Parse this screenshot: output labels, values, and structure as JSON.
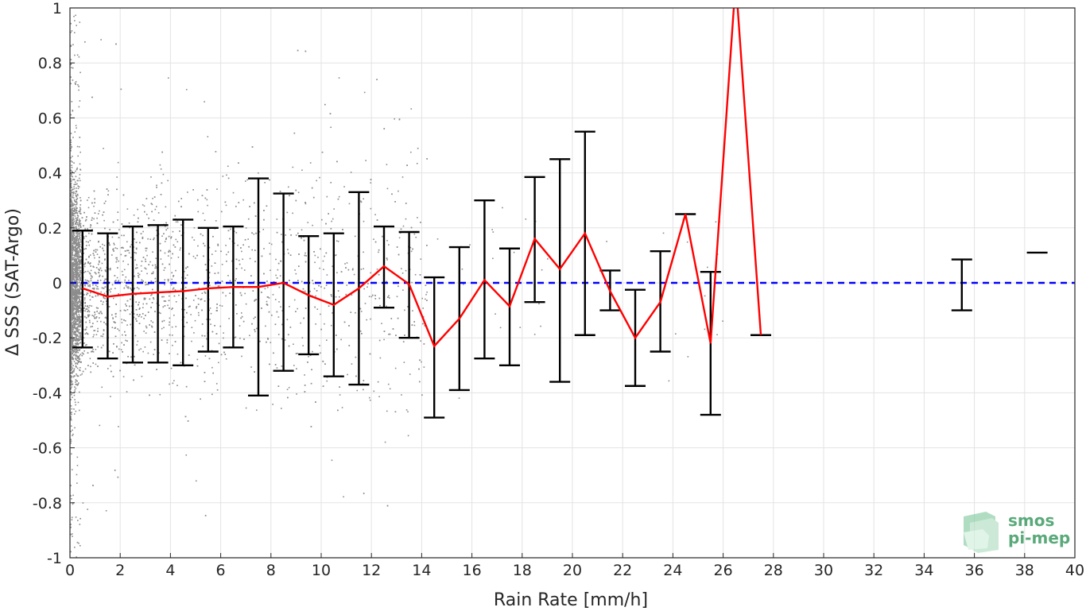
{
  "chart_data": {
    "type": "scatter",
    "xlabel": "Rain Rate [mm/h]",
    "ylabel": "Δ SSS (SAT-Argo)",
    "xlim": [
      0,
      40
    ],
    "ylim": [
      -1,
      1
    ],
    "xticks": [
      0,
      2,
      4,
      6,
      8,
      10,
      12,
      14,
      16,
      18,
      20,
      22,
      24,
      26,
      28,
      30,
      32,
      34,
      36,
      38,
      40
    ],
    "yticks": [
      -1,
      -0.8,
      -0.6,
      -0.4,
      -0.2,
      0,
      0.2,
      0.4,
      0.6,
      0.8,
      1
    ],
    "grid": true,
    "reference_line": {
      "y": 0,
      "color": "#0000ff",
      "style": "dashed"
    },
    "scatter_color": "#8c8c8c",
    "mean_line_color": "#ff0000",
    "errorbar_color": "#000000",
    "mean_line": {
      "x": [
        0.5,
        1.5,
        2.5,
        3.5,
        4.5,
        5.5,
        6.5,
        7.5,
        8.5,
        9.5,
        10.5,
        11.5,
        12.5,
        13.5,
        14.5,
        15.5,
        16.5,
        17.5,
        18.5,
        19.5,
        20.5,
        21.5,
        22.5,
        23.5,
        24.5,
        25.5,
        26.5,
        27.5
      ],
      "y": [
        -0.02,
        -0.05,
        -0.04,
        -0.035,
        -0.03,
        -0.02,
        -0.015,
        -0.015,
        0.0,
        -0.045,
        -0.08,
        -0.02,
        0.06,
        -0.005,
        -0.23,
        -0.13,
        0.01,
        -0.085,
        0.16,
        0.05,
        0.18,
        -0.03,
        -0.2,
        -0.07,
        0.25,
        -0.22,
        1.1,
        -0.19
      ]
    },
    "error_bars": [
      {
        "x": 0.5,
        "low": -0.235,
        "high": 0.19
      },
      {
        "x": 1.5,
        "low": -0.275,
        "high": 0.18
      },
      {
        "x": 2.5,
        "low": -0.29,
        "high": 0.205
      },
      {
        "x": 3.5,
        "low": -0.29,
        "high": 0.21
      },
      {
        "x": 4.5,
        "low": -0.3,
        "high": 0.23
      },
      {
        "x": 5.5,
        "low": -0.25,
        "high": 0.2
      },
      {
        "x": 6.5,
        "low": -0.235,
        "high": 0.205
      },
      {
        "x": 7.5,
        "low": -0.41,
        "high": 0.38
      },
      {
        "x": 8.5,
        "low": -0.32,
        "high": 0.325
      },
      {
        "x": 9.5,
        "low": -0.26,
        "high": 0.17
      },
      {
        "x": 10.5,
        "low": -0.34,
        "high": 0.18
      },
      {
        "x": 11.5,
        "low": -0.37,
        "high": 0.33
      },
      {
        "x": 12.5,
        "low": -0.09,
        "high": 0.205
      },
      {
        "x": 13.5,
        "low": -0.2,
        "high": 0.185
      },
      {
        "x": 14.5,
        "low": -0.49,
        "high": 0.02
      },
      {
        "x": 15.5,
        "low": -0.39,
        "high": 0.13
      },
      {
        "x": 16.5,
        "low": -0.275,
        "high": 0.3
      },
      {
        "x": 17.5,
        "low": -0.3,
        "high": 0.125
      },
      {
        "x": 18.5,
        "low": -0.07,
        "high": 0.385
      },
      {
        "x": 19.5,
        "low": -0.36,
        "high": 0.45
      },
      {
        "x": 20.5,
        "low": -0.19,
        "high": 0.55
      },
      {
        "x": 21.5,
        "low": -0.1,
        "high": 0.045
      },
      {
        "x": 22.5,
        "low": -0.375,
        "high": -0.025
      },
      {
        "x": 23.5,
        "low": -0.25,
        "high": 0.115
      },
      {
        "x": 24.5,
        "low": 0.25,
        "high": 0.25
      },
      {
        "x": 25.5,
        "low": -0.48,
        "high": 0.04
      },
      {
        "x": 27.5,
        "low": -0.19,
        "high": -0.19
      },
      {
        "x": 35.5,
        "low": -0.1,
        "high": 0.085
      },
      {
        "x": 38.5,
        "low": 0.11,
        "high": 0.11
      }
    ]
  },
  "logo": {
    "line1": "smos",
    "line2": "pi-mep",
    "color": "#5aa97a"
  }
}
